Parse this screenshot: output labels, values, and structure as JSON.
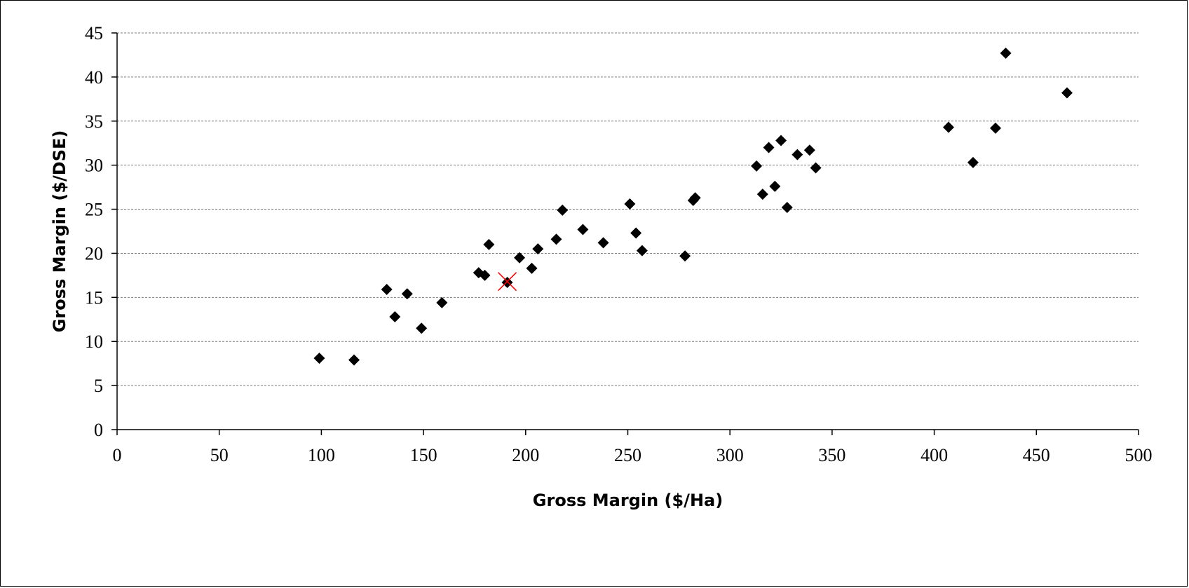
{
  "chart_data": {
    "type": "scatter",
    "title": "",
    "xlabel": "Gross Margin ($/Ha)",
    "ylabel": "Gross Margin ($/DSE)",
    "xlim": [
      0,
      500
    ],
    "ylim": [
      0,
      45
    ],
    "x_ticks": [
      0,
      50,
      100,
      150,
      200,
      250,
      300,
      350,
      400,
      450,
      500
    ],
    "y_ticks": [
      0,
      5,
      10,
      15,
      20,
      25,
      30,
      35,
      40,
      45
    ],
    "grid": "horizontal-dashed",
    "legend": "none",
    "series": [
      {
        "marker": "diamond",
        "color": "#000000",
        "points": [
          [
            99,
            8.1
          ],
          [
            116,
            7.9
          ],
          [
            132,
            15.9
          ],
          [
            136,
            12.8
          ],
          [
            142,
            15.4
          ],
          [
            149,
            11.5
          ],
          [
            159,
            14.4
          ],
          [
            177,
            17.8
          ],
          [
            180,
            17.5
          ],
          [
            182,
            21.0
          ],
          [
            191,
            16.7
          ],
          [
            197,
            19.5
          ],
          [
            203,
            18.3
          ],
          [
            206,
            20.5
          ],
          [
            215,
            21.6
          ],
          [
            218,
            24.9
          ],
          [
            228,
            22.7
          ],
          [
            238,
            21.2
          ],
          [
            251,
            25.6
          ],
          [
            254,
            22.3
          ],
          [
            257,
            20.3
          ],
          [
            278,
            19.7
          ],
          [
            282,
            26.0
          ],
          [
            283,
            26.3
          ],
          [
            313,
            29.9
          ],
          [
            316,
            26.7
          ],
          [
            319,
            32.0
          ],
          [
            322,
            27.6
          ],
          [
            325,
            32.8
          ],
          [
            328,
            25.2
          ],
          [
            333,
            31.2
          ],
          [
            339,
            31.7
          ],
          [
            342,
            29.7
          ],
          [
            407,
            34.3
          ],
          [
            419,
            30.3
          ],
          [
            430,
            34.2
          ],
          [
            435,
            42.7
          ],
          [
            465,
            38.2
          ]
        ]
      },
      {
        "marker": "x",
        "color": "#ff0000",
        "points": [
          [
            191,
            16.8
          ]
        ]
      }
    ]
  }
}
